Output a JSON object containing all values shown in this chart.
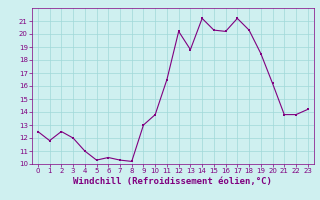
{
  "x": [
    0,
    1,
    2,
    3,
    4,
    5,
    6,
    7,
    8,
    9,
    10,
    11,
    12,
    13,
    14,
    15,
    16,
    17,
    18,
    19,
    20,
    21,
    22,
    23
  ],
  "y": [
    12.5,
    11.8,
    12.5,
    12.0,
    11.0,
    10.3,
    10.5,
    10.3,
    10.2,
    13.0,
    13.8,
    16.5,
    20.2,
    18.8,
    21.2,
    20.3,
    20.2,
    21.2,
    20.3,
    18.5,
    16.2,
    13.8,
    13.8,
    14.2
  ],
  "line_color": "#800080",
  "marker_color": "#800080",
  "bg_color": "#cff0f0",
  "grid_color": "#a0d8d8",
  "xlabel": "Windchill (Refroidissement éolien,°C)",
  "xlabel_color": "#800080",
  "ylim": [
    10,
    22
  ],
  "xlim": [
    -0.5,
    23.5
  ],
  "yticks": [
    10,
    11,
    12,
    13,
    14,
    15,
    16,
    17,
    18,
    19,
    20,
    21
  ],
  "xticks": [
    0,
    1,
    2,
    3,
    4,
    5,
    6,
    7,
    8,
    9,
    10,
    11,
    12,
    13,
    14,
    15,
    16,
    17,
    18,
    19,
    20,
    21,
    22,
    23
  ],
  "tick_color": "#800080",
  "tick_fontsize": 5.0,
  "xlabel_fontsize": 6.5,
  "marker_size": 1.8,
  "line_width": 0.8
}
